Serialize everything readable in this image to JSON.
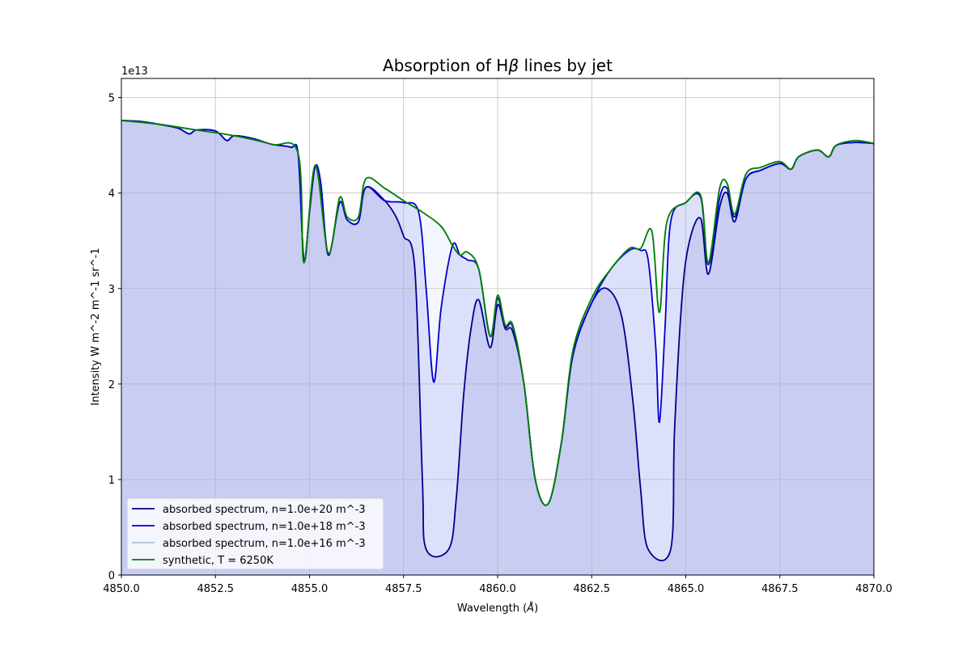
{
  "chart_data": {
    "type": "line",
    "title_prefix": "Absorption of H",
    "title_symbol": "β",
    "title_suffix": " lines by jet",
    "xlabel_prefix": "Wavelength (",
    "xlabel_symbol": "Å",
    "xlabel_suffix": ")",
    "ylabel": "Intensity W m^-2 m^-1 sr^-1",
    "y_offset_label": "1e13",
    "xlim": [
      4850.0,
      4870.0
    ],
    "ylim": [
      0,
      5.2
    ],
    "y_scale_note": "values in units of 1e13",
    "x_ticks": [
      4850.0,
      4852.5,
      4855.0,
      4857.5,
      4860.0,
      4862.5,
      4865.0,
      4867.5,
      4870.0
    ],
    "x_tick_labels": [
      "4850.0",
      "4852.5",
      "4855.0",
      "4857.5",
      "4860.0",
      "4862.5",
      "4865.0",
      "4867.5",
      "4870.0"
    ],
    "y_ticks": [
      0,
      1,
      2,
      3,
      4,
      5
    ],
    "y_tick_labels": [
      "0",
      "1",
      "2",
      "3",
      "4",
      "5"
    ],
    "grid": true,
    "legend_position": "lower-left",
    "series": [
      {
        "name": "absorbed spectrum, n=1.0e+20 m^-3",
        "color": "#00008b",
        "fill": "#c9cdf2",
        "points": [
          [
            4850.0,
            4.76
          ],
          [
            4850.5,
            4.75
          ],
          [
            4851.0,
            4.72
          ],
          [
            4851.5,
            4.68
          ],
          [
            4851.8,
            4.62
          ],
          [
            4852.0,
            4.66
          ],
          [
            4852.5,
            4.65
          ],
          [
            4852.8,
            4.55
          ],
          [
            4853.0,
            4.6
          ],
          [
            4853.5,
            4.57
          ],
          [
            4854.0,
            4.51
          ],
          [
            4854.5,
            4.48
          ],
          [
            4854.7,
            4.4
          ],
          [
            4854.85,
            3.3
          ],
          [
            4855.0,
            3.8
          ],
          [
            4855.15,
            4.28
          ],
          [
            4855.3,
            4.1
          ],
          [
            4855.5,
            3.35
          ],
          [
            4855.8,
            3.9
          ],
          [
            4856.0,
            3.72
          ],
          [
            4856.3,
            3.7
          ],
          [
            4856.5,
            4.06
          ],
          [
            4857.0,
            3.92
          ],
          [
            4857.3,
            3.75
          ],
          [
            4857.5,
            3.55
          ],
          [
            4857.8,
            3.2
          ],
          [
            4858.0,
            1.0
          ],
          [
            4858.1,
            0.27
          ],
          [
            4858.7,
            0.27
          ],
          [
            4858.9,
            0.8
          ],
          [
            4859.1,
            1.9
          ],
          [
            4859.3,
            2.6
          ],
          [
            4859.5,
            2.88
          ],
          [
            4859.8,
            2.38
          ],
          [
            4860.0,
            2.83
          ],
          [
            4860.2,
            2.58
          ],
          [
            4860.4,
            2.55
          ],
          [
            4860.7,
            2.0
          ],
          [
            4861.0,
            1.0
          ],
          [
            4861.35,
            0.75
          ],
          [
            4861.7,
            1.4
          ],
          [
            4862.0,
            2.3
          ],
          [
            4862.5,
            2.85
          ],
          [
            4862.9,
            3.0
          ],
          [
            4863.3,
            2.7
          ],
          [
            4863.6,
            1.8
          ],
          [
            4863.8,
            0.9
          ],
          [
            4864.0,
            0.27
          ],
          [
            4864.6,
            0.27
          ],
          [
            4864.7,
            1.5
          ],
          [
            4864.9,
            2.9
          ],
          [
            4865.1,
            3.5
          ],
          [
            4865.4,
            3.73
          ],
          [
            4865.6,
            3.15
          ],
          [
            4865.9,
            3.85
          ],
          [
            4866.1,
            4.0
          ],
          [
            4866.3,
            3.7
          ],
          [
            4866.6,
            4.15
          ],
          [
            4867.0,
            4.24
          ],
          [
            4867.5,
            4.31
          ],
          [
            4867.8,
            4.25
          ],
          [
            4868.0,
            4.38
          ],
          [
            4868.5,
            4.45
          ],
          [
            4868.8,
            4.38
          ],
          [
            4869.0,
            4.5
          ],
          [
            4869.5,
            4.53
          ],
          [
            4870.0,
            4.52
          ]
        ]
      },
      {
        "name": "absorbed spectrum, n=1.0e+18 m^-3",
        "color": "#0000cd",
        "fill": "#dde0fa",
        "points": [
          [
            4850.0,
            4.76
          ],
          [
            4850.5,
            4.75
          ],
          [
            4851.0,
            4.72
          ],
          [
            4851.5,
            4.68
          ],
          [
            4851.8,
            4.62
          ],
          [
            4852.0,
            4.66
          ],
          [
            4852.5,
            4.65
          ],
          [
            4852.8,
            4.55
          ],
          [
            4853.0,
            4.6
          ],
          [
            4853.5,
            4.57
          ],
          [
            4854.0,
            4.51
          ],
          [
            4854.5,
            4.48
          ],
          [
            4854.7,
            4.4
          ],
          [
            4854.85,
            3.3
          ],
          [
            4855.0,
            3.8
          ],
          [
            4855.15,
            4.28
          ],
          [
            4855.3,
            4.1
          ],
          [
            4855.5,
            3.35
          ],
          [
            4855.8,
            3.9
          ],
          [
            4856.0,
            3.72
          ],
          [
            4856.3,
            3.7
          ],
          [
            4856.5,
            4.06
          ],
          [
            4857.0,
            3.92
          ],
          [
            4857.5,
            3.9
          ],
          [
            4857.9,
            3.8
          ],
          [
            4858.1,
            3.0
          ],
          [
            4858.3,
            2.02
          ],
          [
            4858.5,
            2.8
          ],
          [
            4858.8,
            3.45
          ],
          [
            4859.0,
            3.35
          ],
          [
            4859.2,
            3.3
          ],
          [
            4859.5,
            3.2
          ],
          [
            4859.8,
            2.5
          ],
          [
            4860.0,
            2.9
          ],
          [
            4860.2,
            2.6
          ],
          [
            4860.4,
            2.6
          ],
          [
            4860.7,
            2.0
          ],
          [
            4861.0,
            1.0
          ],
          [
            4861.35,
            0.75
          ],
          [
            4861.7,
            1.4
          ],
          [
            4862.0,
            2.3
          ],
          [
            4862.5,
            2.85
          ],
          [
            4863.0,
            3.2
          ],
          [
            4863.5,
            3.4
          ],
          [
            4863.8,
            3.4
          ],
          [
            4864.0,
            3.3
          ],
          [
            4864.2,
            2.4
          ],
          [
            4864.3,
            1.6
          ],
          [
            4864.45,
            2.6
          ],
          [
            4864.6,
            3.7
          ],
          [
            4865.0,
            3.9
          ],
          [
            4865.4,
            3.95
          ],
          [
            4865.6,
            3.25
          ],
          [
            4865.9,
            3.95
          ],
          [
            4866.1,
            4.05
          ],
          [
            4866.3,
            3.75
          ],
          [
            4866.6,
            4.15
          ],
          [
            4867.0,
            4.24
          ],
          [
            4867.5,
            4.31
          ],
          [
            4867.8,
            4.25
          ],
          [
            4868.0,
            4.38
          ],
          [
            4868.5,
            4.45
          ],
          [
            4868.8,
            4.38
          ],
          [
            4869.0,
            4.5
          ],
          [
            4869.5,
            4.53
          ],
          [
            4870.0,
            4.52
          ]
        ]
      },
      {
        "name": "absorbed spectrum, n=1.0e+16 m^-3",
        "color": "#b0c4de",
        "fill": "#f4f6fd",
        "points": [
          [
            4850.0,
            4.76
          ],
          [
            4851.0,
            4.72
          ],
          [
            4852.0,
            4.66
          ],
          [
            4853.0,
            4.6
          ],
          [
            4854.0,
            4.51
          ],
          [
            4854.7,
            4.41
          ],
          [
            4854.85,
            3.27
          ],
          [
            4855.15,
            4.29
          ],
          [
            4855.5,
            3.37
          ],
          [
            4855.8,
            3.95
          ],
          [
            4856.0,
            3.75
          ],
          [
            4856.3,
            3.75
          ],
          [
            4856.5,
            4.15
          ],
          [
            4857.0,
            4.05
          ],
          [
            4857.5,
            3.92
          ],
          [
            4858.0,
            3.8
          ],
          [
            4858.5,
            3.65
          ],
          [
            4858.8,
            3.45
          ],
          [
            4859.0,
            3.35
          ],
          [
            4859.2,
            3.38
          ],
          [
            4859.5,
            3.2
          ],
          [
            4859.8,
            2.5
          ],
          [
            4860.0,
            2.93
          ],
          [
            4860.2,
            2.62
          ],
          [
            4860.4,
            2.62
          ],
          [
            4860.7,
            2.0
          ],
          [
            4861.0,
            1.0
          ],
          [
            4861.35,
            0.75
          ],
          [
            4861.7,
            1.4
          ],
          [
            4862.0,
            2.35
          ],
          [
            4862.5,
            2.9
          ],
          [
            4863.0,
            3.2
          ],
          [
            4863.5,
            3.42
          ],
          [
            4863.8,
            3.42
          ],
          [
            4864.1,
            3.6
          ],
          [
            4864.3,
            2.75
          ],
          [
            4864.5,
            3.7
          ],
          [
            4865.0,
            3.9
          ],
          [
            4865.4,
            3.97
          ],
          [
            4865.6,
            3.27
          ],
          [
            4865.9,
            4.05
          ],
          [
            4866.1,
            4.1
          ],
          [
            4866.3,
            3.78
          ],
          [
            4866.6,
            4.2
          ],
          [
            4867.0,
            4.27
          ],
          [
            4867.5,
            4.33
          ],
          [
            4867.8,
            4.25
          ],
          [
            4868.0,
            4.38
          ],
          [
            4868.5,
            4.45
          ],
          [
            4868.8,
            4.38
          ],
          [
            4869.0,
            4.5
          ],
          [
            4869.5,
            4.55
          ],
          [
            4870.0,
            4.52
          ]
        ]
      },
      {
        "name": "synthetic, T = 6250K",
        "color": "#008000",
        "fill": null,
        "points": [
          [
            4850.0,
            4.76
          ],
          [
            4851.0,
            4.72
          ],
          [
            4852.0,
            4.66
          ],
          [
            4853.0,
            4.6
          ],
          [
            4854.0,
            4.51
          ],
          [
            4854.7,
            4.41
          ],
          [
            4854.85,
            3.27
          ],
          [
            4855.15,
            4.29
          ],
          [
            4855.5,
            3.37
          ],
          [
            4855.8,
            3.95
          ],
          [
            4856.0,
            3.75
          ],
          [
            4856.3,
            3.75
          ],
          [
            4856.5,
            4.15
          ],
          [
            4857.0,
            4.05
          ],
          [
            4857.5,
            3.92
          ],
          [
            4858.0,
            3.8
          ],
          [
            4858.5,
            3.65
          ],
          [
            4858.8,
            3.45
          ],
          [
            4859.0,
            3.35
          ],
          [
            4859.2,
            3.38
          ],
          [
            4859.5,
            3.2
          ],
          [
            4859.8,
            2.5
          ],
          [
            4860.0,
            2.93
          ],
          [
            4860.2,
            2.62
          ],
          [
            4860.4,
            2.62
          ],
          [
            4860.7,
            2.0
          ],
          [
            4861.0,
            1.0
          ],
          [
            4861.35,
            0.75
          ],
          [
            4861.7,
            1.4
          ],
          [
            4862.0,
            2.35
          ],
          [
            4862.5,
            2.9
          ],
          [
            4863.0,
            3.2
          ],
          [
            4863.5,
            3.42
          ],
          [
            4863.8,
            3.42
          ],
          [
            4864.1,
            3.6
          ],
          [
            4864.3,
            2.75
          ],
          [
            4864.5,
            3.7
          ],
          [
            4865.0,
            3.9
          ],
          [
            4865.4,
            3.97
          ],
          [
            4865.6,
            3.27
          ],
          [
            4865.9,
            4.05
          ],
          [
            4866.1,
            4.1
          ],
          [
            4866.3,
            3.78
          ],
          [
            4866.6,
            4.2
          ],
          [
            4867.0,
            4.27
          ],
          [
            4867.5,
            4.33
          ],
          [
            4867.8,
            4.25
          ],
          [
            4868.0,
            4.38
          ],
          [
            4868.5,
            4.45
          ],
          [
            4868.8,
            4.38
          ],
          [
            4869.0,
            4.5
          ],
          [
            4869.5,
            4.55
          ],
          [
            4870.0,
            4.52
          ]
        ]
      }
    ]
  }
}
